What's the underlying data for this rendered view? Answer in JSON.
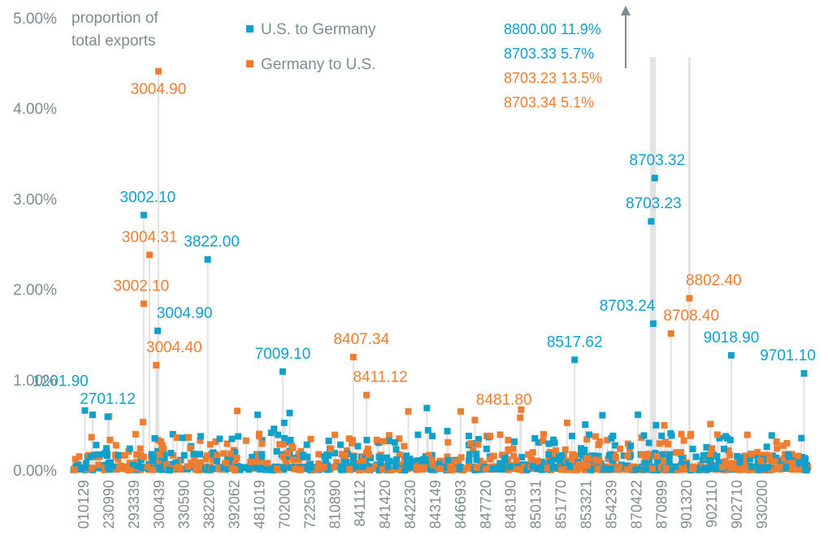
{
  "chart_data": {
    "type": "scatter",
    "title": "",
    "ylabel": "proportion of total exports",
    "ylabel_lines": [
      "proportion of",
      "total exports"
    ],
    "xlabel": "",
    "ylim": [
      0,
      5
    ],
    "y_unit": "%",
    "grid": false,
    "yticks": [
      "0.00%",
      "1.00%",
      "2.00%",
      "3.00%",
      "4.00%",
      "5.00%"
    ],
    "ytick_values": [
      0,
      1,
      2,
      3,
      4,
      5
    ],
    "xticks": [
      "010129",
      "230990",
      "293339",
      "300439",
      "330590",
      "382200",
      "392062",
      "481019",
      "702000",
      "722530",
      "810890",
      "841112",
      "841420",
      "842230",
      "843149",
      "846693",
      "847720",
      "848190",
      "850131",
      "851770",
      "853321",
      "854239",
      "870422",
      "870899",
      "901320",
      "902110",
      "902710",
      "930200"
    ],
    "x_domain": [
      0,
      1000
    ],
    "legend_position": "top-center",
    "colors": {
      "us_to_germany": "#0fa0cc",
      "germany_to_us": "#ef7d31",
      "stem": "#e3e3e3",
      "axis_text": "#7f8c8d",
      "arrow": "#7f8c8d"
    },
    "series": [
      {
        "name": "U.S. to Germany",
        "key": "us_to_germany",
        "labeled_points": [
          {
            "code": "1201.90",
            "x": 16,
            "y": 0.66,
            "label_dx": -30,
            "label_dy": -30
          },
          {
            "code": "2701.12",
            "x": 47,
            "y": 0.59,
            "label_dx": 0,
            "label_dy": -16
          },
          {
            "code": "3002.10",
            "x": 96,
            "y": 2.82,
            "label_dx": 5,
            "label_dy": -16
          },
          {
            "code": "3004.90",
            "x": 115,
            "y": 1.54,
            "label_dx": 33,
            "label_dy": -16
          },
          {
            "code": "3822.00",
            "x": 183,
            "y": 2.33,
            "label_dx": 5,
            "label_dy": -16
          },
          {
            "code": "7009.10",
            "x": 285,
            "y": 1.09,
            "label_dx": 0,
            "label_dy": -16
          },
          {
            "code": "8517.62",
            "x": 682,
            "y": 1.22,
            "label_dx": 0,
            "label_dy": -16
          },
          {
            "code": "8703.23",
            "x": 786,
            "y": 2.75,
            "label_dx": 3,
            "label_dy": -16
          },
          {
            "code": "8703.24",
            "x": 789,
            "y": 1.62,
            "label_dx": -32,
            "label_dy": -16
          },
          {
            "code": "8703.32",
            "x": 791,
            "y": 3.23,
            "label_dx": 3,
            "label_dy": -16
          },
          {
            "code": "9018.90",
            "x": 895,
            "y": 1.27,
            "label_dx": 0,
            "label_dy": -16
          },
          {
            "code": "9701.10",
            "x": 994,
            "y": 1.07,
            "label_dx": -20,
            "label_dy": -16
          }
        ],
        "offscale_points": [
          {
            "code": "8800.00",
            "y": 11.9
          },
          {
            "code": "8703.33",
            "y": 5.7
          }
        ]
      },
      {
        "name": "Germany to U.S.",
        "key": "germany_to_us",
        "labeled_points": [
          {
            "code": "3002.10",
            "x": 96,
            "y": 1.84,
            "label_dx": -3,
            "label_dy": -16
          },
          {
            "code": "3004.31",
            "x": 104,
            "y": 2.38,
            "label_dx": 0,
            "label_dy": -16
          },
          {
            "code": "3004.40",
            "x": 113,
            "y": 1.16,
            "label_dx": 22,
            "label_dy": -16
          },
          {
            "code": "3004.90",
            "x": 116,
            "y": 4.41,
            "label_dx": 0,
            "label_dy": 28
          },
          {
            "code": "8407.34",
            "x": 381,
            "y": 1.25,
            "label_dx": 10,
            "label_dy": -16
          },
          {
            "code": "8411.12",
            "x": 399,
            "y": 0.83,
            "label_dx": 17,
            "label_dy": -16
          },
          {
            "code": "8481.80",
            "x": 608,
            "y": 0.58,
            "label_dx": -20,
            "label_dy": -16
          },
          {
            "code": "8708.40",
            "x": 813,
            "y": 1.51,
            "label_dx": 25,
            "label_dy": -16
          },
          {
            "code": "8802.40",
            "x": 838,
            "y": 1.9,
            "label_dx": 30,
            "label_dy": -16
          }
        ],
        "offscale_points": [
          {
            "code": "8703.23",
            "y": 13.5
          },
          {
            "code": "8703.34",
            "y": 5.1
          }
        ]
      }
    ],
    "offscale_note": [
      {
        "text": "8800.00 11.9%",
        "series": "us_to_germany"
      },
      {
        "text": "8703.33 5.7%",
        "series": "us_to_germany"
      },
      {
        "text": "8703.23 13.5%",
        "series": "germany_to_us"
      },
      {
        "text": "8703.34 5.1%",
        "series": "germany_to_us"
      }
    ],
    "background_points_note": "approximately 650 additional unlabeled points per chart with values mostly between 0% and 0.7%"
  }
}
